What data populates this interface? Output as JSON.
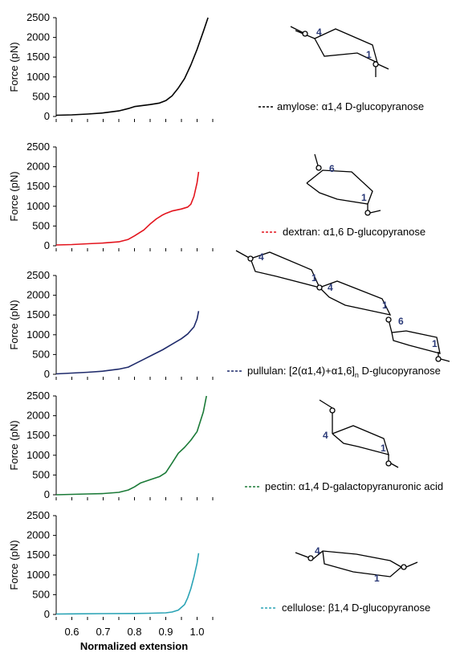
{
  "chart_data": [
    {
      "type": "line",
      "ylabel": "Force (pN)",
      "yticks": [
        "2500",
        "2000",
        "1500",
        "1000",
        "500",
        "0"
      ],
      "ylim": [
        0,
        2500
      ],
      "xlim": [
        0.55,
        1.05
      ],
      "series": [
        {
          "name": "amylose: α1,4 D-glucopyranose",
          "color": "#000000",
          "x": [
            0.55,
            0.6,
            0.65,
            0.7,
            0.75,
            0.78,
            0.8,
            0.85,
            0.88,
            0.9,
            0.92,
            0.94,
            0.96,
            0.98,
            1.0,
            1.02,
            1.035
          ],
          "y": [
            30,
            40,
            60,
            90,
            140,
            200,
            250,
            300,
            340,
            400,
            520,
            720,
            960,
            1300,
            1700,
            2150,
            2500
          ]
        }
      ]
    },
    {
      "type": "line",
      "ylabel": "Force (pN)",
      "yticks": [
        "2500",
        "2000",
        "1500",
        "1000",
        "500",
        "0"
      ],
      "ylim": [
        0,
        2500
      ],
      "xlim": [
        0.55,
        1.05
      ],
      "series": [
        {
          "name": "dextran: α1,6 D-glucopyranose",
          "color": "#e3141d",
          "x": [
            0.55,
            0.6,
            0.65,
            0.7,
            0.75,
            0.78,
            0.8,
            0.83,
            0.85,
            0.87,
            0.89,
            0.9,
            0.92,
            0.95,
            0.97,
            0.98,
            0.99,
            1.0,
            1.005
          ],
          "y": [
            20,
            30,
            50,
            70,
            100,
            160,
            250,
            400,
            550,
            680,
            780,
            820,
            880,
            930,
            980,
            1050,
            1250,
            1600,
            1870
          ]
        }
      ]
    },
    {
      "type": "line",
      "ylabel": "Force (pN)",
      "yticks": [
        "2500",
        "2000",
        "1500",
        "1000",
        "500",
        "0"
      ],
      "ylim": [
        0,
        2500
      ],
      "xlim": [
        0.55,
        1.05
      ],
      "series": [
        {
          "name": "pullulan: [2(α1,4)+α1,6]n D-glucopyranose",
          "color": "#1f2b6b",
          "x": [
            0.55,
            0.6,
            0.65,
            0.7,
            0.75,
            0.78,
            0.8,
            0.83,
            0.86,
            0.89,
            0.92,
            0.95,
            0.97,
            0.99,
            1.0,
            1.005
          ],
          "y": [
            10,
            30,
            50,
            80,
            130,
            180,
            260,
            380,
            500,
            620,
            760,
            900,
            1020,
            1200,
            1400,
            1600
          ]
        }
      ]
    },
    {
      "type": "line",
      "ylabel": "Force (pN)",
      "yticks": [
        "2500",
        "2000",
        "1500",
        "1000",
        "500",
        "0"
      ],
      "ylim": [
        0,
        2500
      ],
      "xlim": [
        0.55,
        1.05
      ],
      "series": [
        {
          "name": "pectin: α1,4 D-galactopyranuronic acid",
          "color": "#1a7a37",
          "x": [
            0.55,
            0.6,
            0.65,
            0.7,
            0.75,
            0.78,
            0.8,
            0.82,
            0.85,
            0.88,
            0.9,
            0.92,
            0.94,
            0.96,
            0.98,
            1.0,
            1.02,
            1.03
          ],
          "y": [
            0,
            10,
            20,
            30,
            60,
            120,
            200,
            300,
            380,
            460,
            560,
            800,
            1050,
            1200,
            1380,
            1600,
            2100,
            2500
          ]
        }
      ]
    },
    {
      "type": "line",
      "ylabel": "Force (pN)",
      "yticks": [
        "2500",
        "2000",
        "1500",
        "1000",
        "500",
        "0"
      ],
      "ylim": [
        0,
        2500
      ],
      "xlim": [
        0.55,
        1.05
      ],
      "xlabel": "Normalized extension",
      "xticks": [
        "0.6",
        "0.7",
        "0.8",
        "0.9",
        "1.0"
      ],
      "series": [
        {
          "name": "cellulose: β1,4 D-glucopyranose",
          "color": "#2aa3b5",
          "x": [
            0.55,
            0.6,
            0.7,
            0.8,
            0.85,
            0.9,
            0.92,
            0.94,
            0.96,
            0.97,
            0.98,
            0.99,
            1.0,
            1.005
          ],
          "y": [
            10,
            15,
            20,
            25,
            30,
            40,
            60,
            110,
            250,
            420,
            650,
            950,
            1300,
            1550
          ]
        }
      ]
    }
  ],
  "legends": [
    {
      "text": "amylose: α1,4 D-glucopyranose",
      "color": "#000000"
    },
    {
      "text": "dextran: α1,6 D-glucopyranose",
      "color": "#e3141d"
    },
    {
      "text": "pullulan: [2(α1,4)+α1,6]",
      "sub": "n",
      "suffix": " D-glucopyranose",
      "color": "#1f2b6b"
    },
    {
      "text": "pectin: α1,4 D-galactopyranuronic acid",
      "color": "#1a7a37"
    },
    {
      "text": "cellulose: β1,4 D-glucopyranose",
      "color": "#2aa3b5"
    }
  ],
  "structures": {
    "amylose": [
      "4",
      "1"
    ],
    "dextran": [
      "6",
      "1"
    ],
    "pullulan": [
      "4",
      "1",
      "4",
      "1",
      "6",
      "1"
    ],
    "pectin": [
      "4",
      "1"
    ],
    "cellulose": [
      "4",
      "1"
    ]
  }
}
